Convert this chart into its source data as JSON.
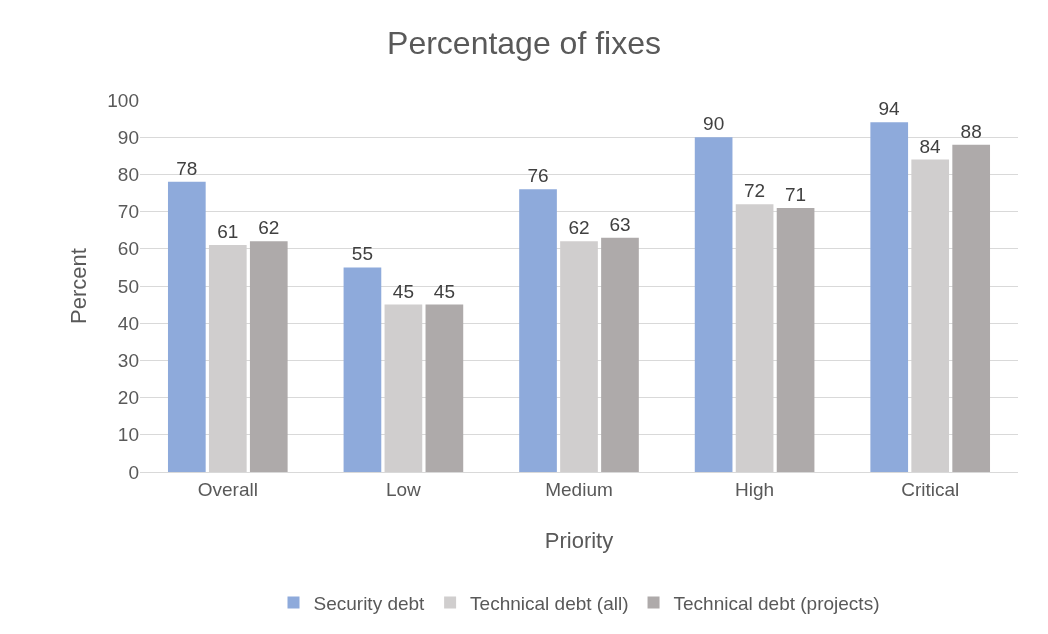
{
  "chart_data": {
    "type": "bar",
    "title": "Percentage of fixes",
    "xlabel": "Priority",
    "ylabel": "Percent",
    "categories": [
      "Overall",
      "Low",
      "Medium",
      "High",
      "Critical"
    ],
    "series": [
      {
        "name": "Security debt",
        "color": "#8eaadb",
        "values": [
          78,
          55,
          76,
          90,
          94
        ]
      },
      {
        "name": "Technical debt (all)",
        "color": "#d0cece",
        "values": [
          61,
          45,
          62,
          72,
          84
        ]
      },
      {
        "name": "Technical debt (projects)",
        "color": "#aeaaaa",
        "values": [
          62,
          45,
          63,
          71,
          88
        ]
      }
    ],
    "ylim": [
      0,
      100
    ],
    "yticks": [
      0,
      10,
      20,
      30,
      40,
      50,
      60,
      70,
      80,
      90,
      100
    ],
    "grid": "y",
    "legend": "bottom",
    "data_labels": true
  }
}
